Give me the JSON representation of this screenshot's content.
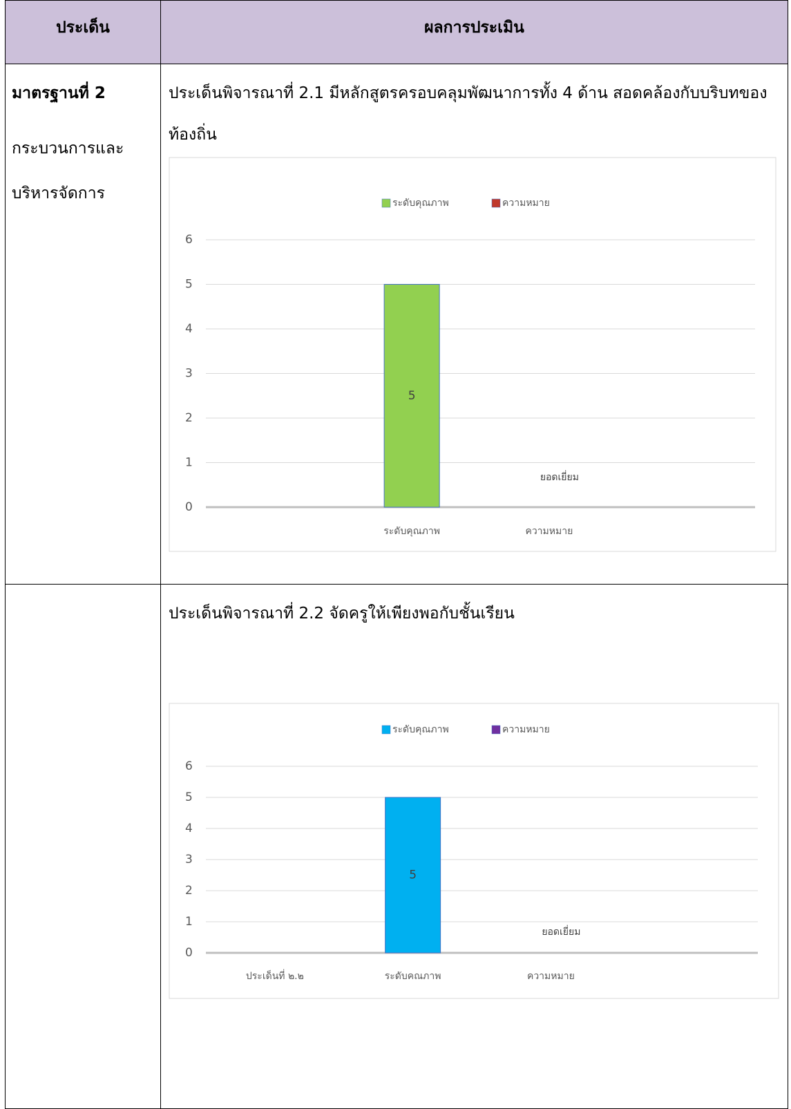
{
  "table": {
    "headers": [
      "ประเด็น",
      "ผลการประเมิน"
    ],
    "rows": [
      {
        "label_title": "มาตรฐานที่ 2",
        "label_lines": [
          "กระบวนการและ",
          "บริหารจัดการ"
        ],
        "text": "ประเด็นพิจารณาที่ 2.1 มีหลักสูตรครอบคลุมพัฒนาการทั้ง 4 ด้าน สอดคล้องกับบริบทของท้องถิ่น"
      },
      {
        "text": "ประเด็นพิจารณาที่ 2.2  จัดครูให้เพียงพอกับชั้นเรียน"
      }
    ]
  },
  "chart_data": [
    {
      "type": "bar",
      "categories": [
        null,
        "ระดับคุณภาพ",
        "ความหมาย",
        null
      ],
      "series": [
        {
          "name": "ระดับคุณภาพ",
          "color": "#92d050",
          "values": [
            null,
            5,
            null,
            null
          ]
        },
        {
          "name": "ความหมาย",
          "color": "#c0392b",
          "values": [
            null,
            null,
            0,
            null
          ],
          "value_labels": [
            null,
            null,
            "ยอดเยี่ยม",
            null
          ]
        }
      ],
      "ylim": [
        0,
        6
      ],
      "yticks": [
        0,
        1,
        2,
        3,
        4,
        5,
        6
      ],
      "grid": true,
      "legend": "top"
    },
    {
      "type": "bar",
      "categories": [
        "ประเด็นที่ ๒.๒",
        "ระดับคณภาพ",
        "ความหมาย",
        null
      ],
      "series": [
        {
          "name": "ระดับคุณภาพ",
          "color": "#00b0f0",
          "values": [
            null,
            5,
            null,
            null
          ]
        },
        {
          "name": "ความหมาย",
          "color": "#7030a0",
          "values": [
            null,
            null,
            0,
            null
          ],
          "value_labels": [
            null,
            null,
            "ยอดเยี่ยม",
            null
          ]
        }
      ],
      "ylim": [
        0,
        6
      ],
      "yticks": [
        0,
        1,
        2,
        3,
        4,
        5,
        6
      ],
      "grid": true,
      "legend": "top"
    }
  ]
}
